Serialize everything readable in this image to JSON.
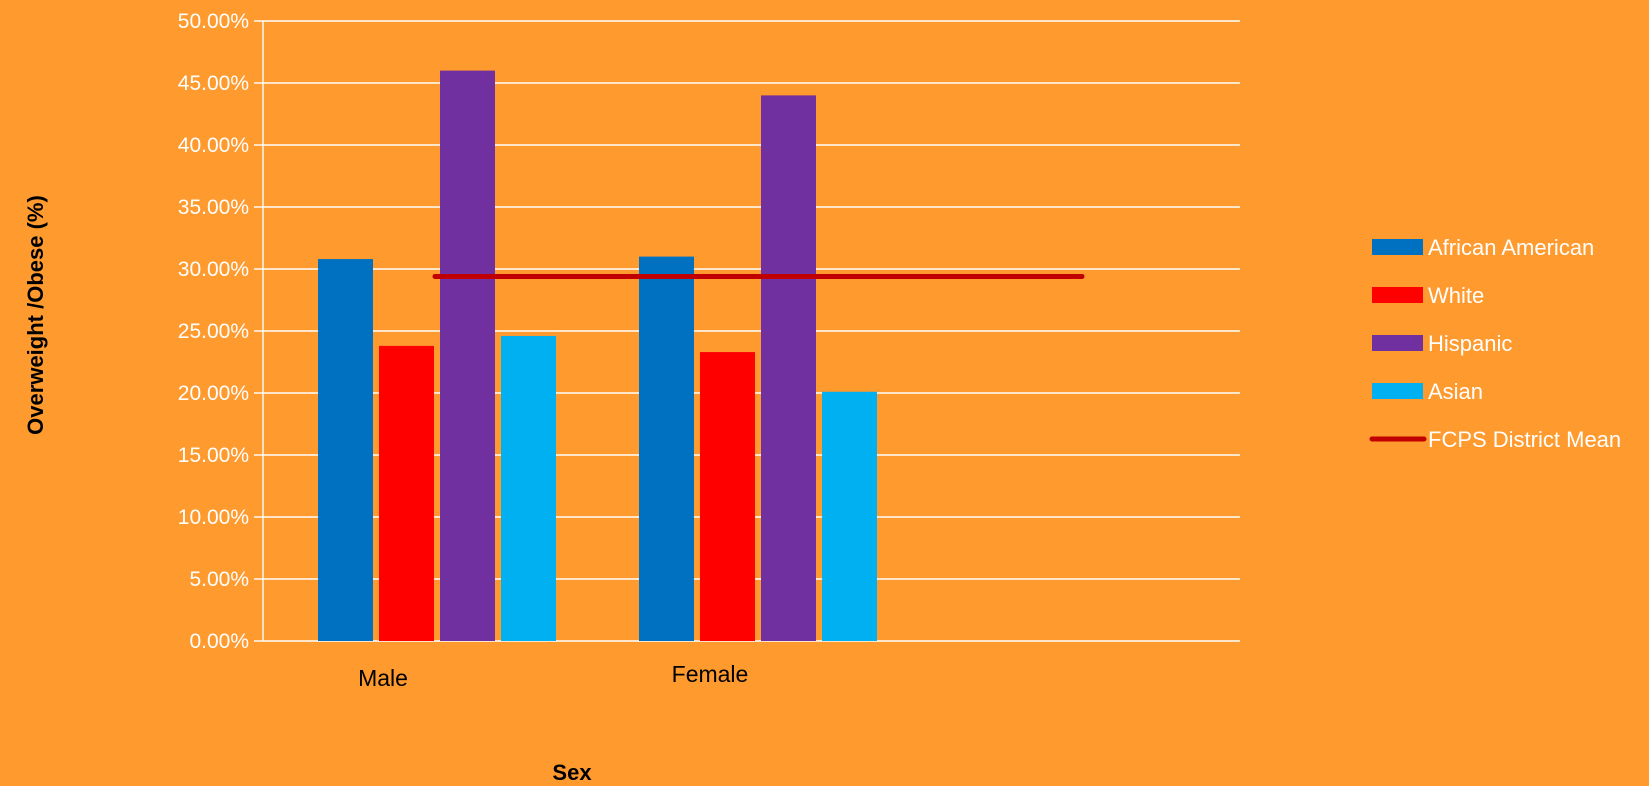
{
  "chart_data": {
    "type": "bar",
    "title": "",
    "xlabel": "Sex",
    "ylabel": "Overweight /Obese (%)",
    "ylim": [
      0,
      0.5
    ],
    "yticks": [
      "0.00%",
      "5.00%",
      "10.00%",
      "15.00%",
      "20.00%",
      "25.00%",
      "30.00%",
      "35.00%",
      "40.00%",
      "45.00%",
      "50.00%"
    ],
    "grid": true,
    "legend_position": "right",
    "categories": [
      "Male",
      "Female"
    ],
    "series": [
      {
        "name": "African American",
        "values": [
          0.308,
          0.31
        ],
        "color": "#0070C0"
      },
      {
        "name": "White",
        "values": [
          0.238,
          0.233
        ],
        "color": "#FF0000"
      },
      {
        "name": "Hispanic",
        "values": [
          0.46,
          0.44
        ],
        "color": "#7030A0"
      },
      {
        "name": "Asian",
        "values": [
          0.246,
          0.201
        ],
        "color": "#00B0F0"
      }
    ],
    "reference_line": {
      "name": "FCPS District Mean",
      "value": 0.294,
      "color": "#C00000"
    }
  }
}
